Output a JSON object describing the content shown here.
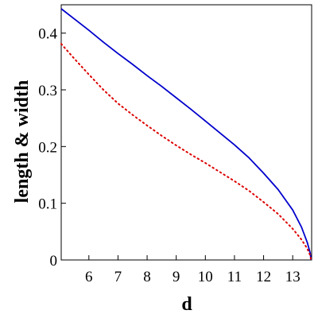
{
  "chart_data": {
    "type": "line",
    "title": "",
    "xlabel": "d",
    "ylabel": "length & width",
    "xlim": [
      5.05,
      13.65
    ],
    "ylim": [
      0,
      0.45
    ],
    "x_ticks": [
      6,
      7,
      8,
      9,
      10,
      11,
      12,
      13
    ],
    "x_tick_labels": [
      "6",
      "7",
      "8",
      "9",
      "10",
      "11",
      "12",
      "13"
    ],
    "y_ticks": [
      0,
      0.1,
      0.2,
      0.3,
      0.4
    ],
    "y_tick_labels": [
      "0",
      "0.1",
      "0.2",
      "0.3",
      "0.4"
    ],
    "grid": false,
    "legend": "none",
    "series": [
      {
        "color": "#0000cc",
        "style": "solid",
        "points": [
          [
            5.05,
            0.443
          ],
          [
            5.5,
            0.425
          ],
          [
            6,
            0.405
          ],
          [
            6.5,
            0.384
          ],
          [
            7,
            0.364
          ],
          [
            7.5,
            0.345
          ],
          [
            8,
            0.325
          ],
          [
            8.5,
            0.306
          ],
          [
            9,
            0.286
          ],
          [
            9.5,
            0.266
          ],
          [
            10,
            0.245
          ],
          [
            10.5,
            0.224
          ],
          [
            11,
            0.203
          ],
          [
            11.5,
            0.18
          ],
          [
            12,
            0.153
          ],
          [
            12.5,
            0.124
          ],
          [
            13,
            0.088
          ],
          [
            13.3,
            0.058
          ],
          [
            13.5,
            0.031
          ],
          [
            13.6,
            0.012
          ],
          [
            13.63,
            0
          ]
        ]
      },
      {
        "color": "#dd0000",
        "style": "dotted",
        "points": [
          [
            5.05,
            0.381
          ],
          [
            5.5,
            0.355
          ],
          [
            6,
            0.327
          ],
          [
            6.5,
            0.3
          ],
          [
            7,
            0.276
          ],
          [
            7.5,
            0.256
          ],
          [
            8,
            0.237
          ],
          [
            8.5,
            0.219
          ],
          [
            9,
            0.202
          ],
          [
            9.5,
            0.186
          ],
          [
            10,
            0.171
          ],
          [
            10.5,
            0.155
          ],
          [
            11,
            0.139
          ],
          [
            11.5,
            0.122
          ],
          [
            12,
            0.102
          ],
          [
            12.5,
            0.081
          ],
          [
            13,
            0.055
          ],
          [
            13.3,
            0.036
          ],
          [
            13.5,
            0.02
          ],
          [
            13.6,
            0.008
          ],
          [
            13.63,
            0
          ]
        ]
      }
    ]
  }
}
